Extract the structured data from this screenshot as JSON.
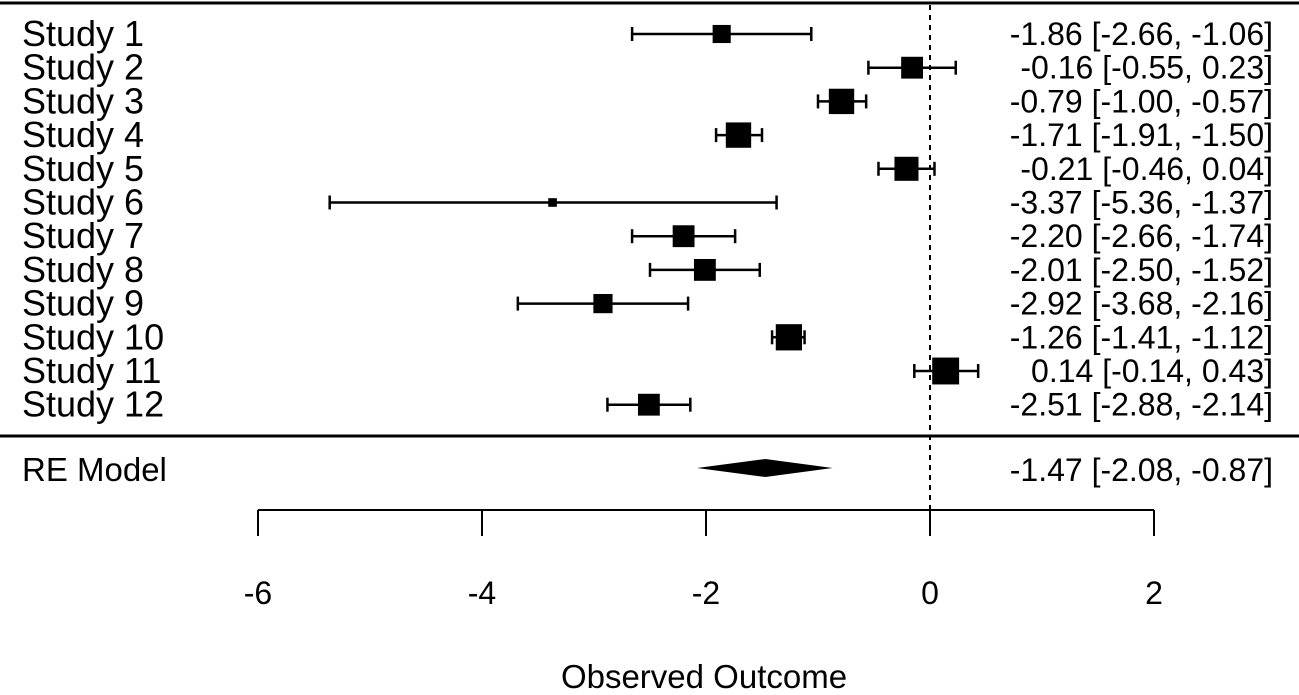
{
  "chart_data": {
    "type": "forest",
    "x_axis": {
      "label": "Observed Outcome",
      "ticks": [
        -6,
        -4,
        -2,
        0,
        2
      ],
      "tick_labels": [
        "-6",
        "-4",
        "-2",
        "0",
        "2"
      ],
      "range": [
        -6,
        2
      ],
      "reference_line": 0
    },
    "studies": [
      {
        "label": "Study 1",
        "estimate": -1.86,
        "ci_lower": -2.66,
        "ci_upper": -1.06,
        "ci_text": "-1.86 [-2.66, -1.06]",
        "weight": 0.55
      },
      {
        "label": "Study 2",
        "estimate": -0.16,
        "ci_lower": -0.55,
        "ci_upper": 0.23,
        "ci_text": "-0.16 [-0.55, 0.23]",
        "weight": 0.72
      },
      {
        "label": "Study 3",
        "estimate": -0.79,
        "ci_lower": -1.0,
        "ci_upper": -0.57,
        "ci_text": "-0.79 [-1.00, -0.57]",
        "weight": 0.88
      },
      {
        "label": "Study 4",
        "estimate": -1.71,
        "ci_lower": -1.91,
        "ci_upper": -1.5,
        "ci_text": "-1.71 [-1.91, -1.50]",
        "weight": 0.88
      },
      {
        "label": "Study 5",
        "estimate": -0.21,
        "ci_lower": -0.46,
        "ci_upper": 0.04,
        "ci_text": "-0.21 [-0.46, 0.04]",
        "weight": 0.82
      },
      {
        "label": "Study 6",
        "estimate": -3.37,
        "ci_lower": -5.36,
        "ci_upper": -1.37,
        "ci_text": "-3.37 [-5.36, -1.37]",
        "weight": 0.12
      },
      {
        "label": "Study 7",
        "estimate": -2.2,
        "ci_lower": -2.66,
        "ci_upper": -1.74,
        "ci_text": "-2.20 [-2.66, -1.74]",
        "weight": 0.72
      },
      {
        "label": "Study 8",
        "estimate": -2.01,
        "ci_lower": -2.5,
        "ci_upper": -1.52,
        "ci_text": "-2.01 [-2.50, -1.52]",
        "weight": 0.72
      },
      {
        "label": "Study 9",
        "estimate": -2.92,
        "ci_lower": -3.68,
        "ci_upper": -2.16,
        "ci_text": "-2.92 [-3.68, -2.16]",
        "weight": 0.6
      },
      {
        "label": "Study 10",
        "estimate": -1.26,
        "ci_lower": -1.41,
        "ci_upper": -1.12,
        "ci_text": "-1.26 [-1.41, -1.12]",
        "weight": 0.92
      },
      {
        "label": "Study 11",
        "estimate": 0.14,
        "ci_lower": -0.14,
        "ci_upper": 0.43,
        "ci_text": "0.14 [-0.14, 0.43]",
        "weight": 0.95
      },
      {
        "label": "Study 12",
        "estimate": -2.51,
        "ci_lower": -2.88,
        "ci_upper": -2.14,
        "ci_text": "-2.51 [-2.88, -2.14]",
        "weight": 0.72
      }
    ],
    "summary": {
      "label": "RE Model",
      "estimate": -1.47,
      "ci_lower": -2.08,
      "ci_upper": -0.87,
      "ci_text": "-1.47 [-2.08, -0.87]"
    },
    "colors": {
      "marks": "#000000",
      "background": "#ffffff"
    }
  }
}
